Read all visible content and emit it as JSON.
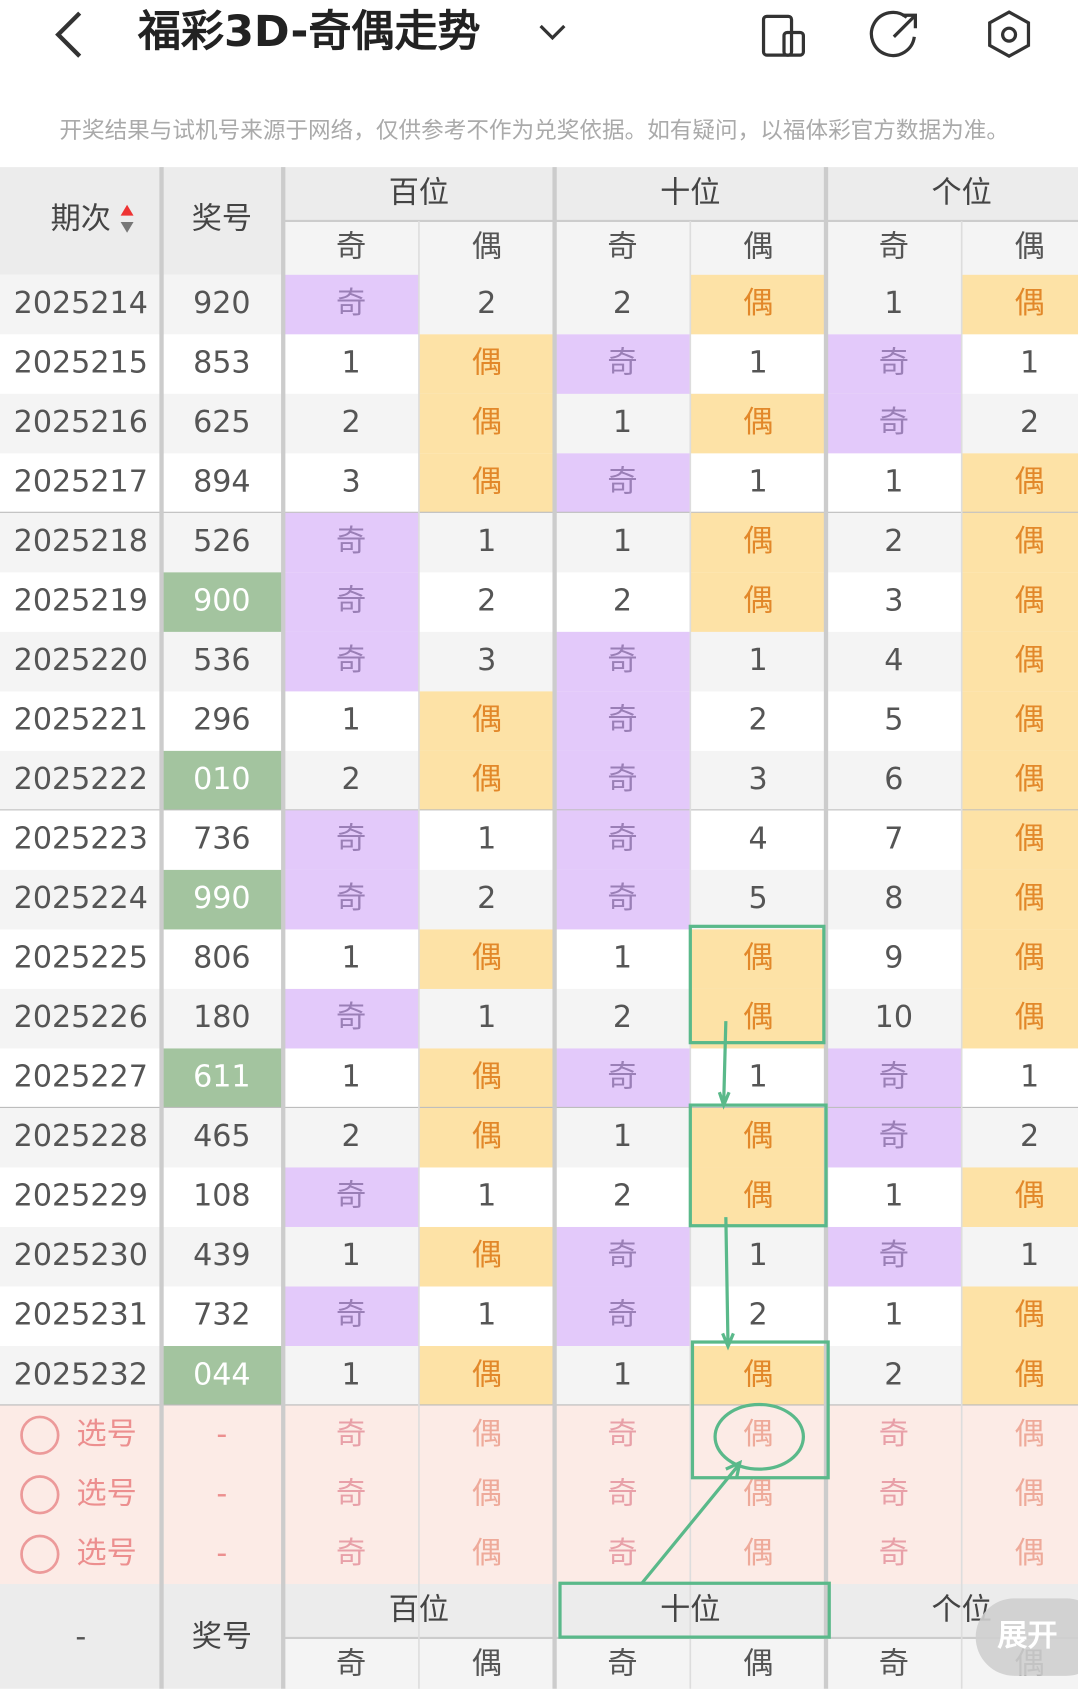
{
  "header": {
    "title": "福彩3D-奇偶走势"
  },
  "notice": "开奖结果与试机号来源于网络，仅供参考不作为兑奖依据。如有疑问，以福体彩官方数据为准。",
  "table": {
    "period_header": "期次",
    "number_header": "奖号",
    "groups": [
      "百位",
      "十位",
      "个位"
    ],
    "sub_headers": [
      "奇",
      "偶"
    ],
    "rows": [
      {
        "period": "2025214",
        "number": "920",
        "cells": [
          "奇",
          2,
          2,
          "偶",
          1,
          "偶"
        ]
      },
      {
        "period": "2025215",
        "number": "853",
        "cells": [
          1,
          "偶",
          "奇",
          1,
          "奇",
          1
        ]
      },
      {
        "period": "2025216",
        "number": "625",
        "cells": [
          2,
          "偶",
          1,
          "偶",
          "奇",
          2
        ]
      },
      {
        "period": "2025217",
        "number": "894",
        "cells": [
          3,
          "偶",
          "奇",
          1,
          1,
          "偶"
        ]
      },
      {
        "period": "2025218",
        "number": "526",
        "cells": [
          "奇",
          1,
          1,
          "偶",
          2,
          "偶"
        ]
      },
      {
        "period": "2025219",
        "number": "900",
        "cells": [
          "奇",
          2,
          2,
          "偶",
          3,
          "偶"
        ]
      },
      {
        "period": "2025220",
        "number": "536",
        "cells": [
          "奇",
          3,
          "奇",
          1,
          4,
          "偶"
        ]
      },
      {
        "period": "2025221",
        "number": "296",
        "cells": [
          1,
          "偶",
          "奇",
          2,
          5,
          "偶"
        ]
      },
      {
        "period": "2025222",
        "number": "010",
        "cells": [
          2,
          "偶",
          "奇",
          3,
          6,
          "偶"
        ]
      },
      {
        "period": "2025223",
        "number": "736",
        "cells": [
          "奇",
          1,
          "奇",
          4,
          7,
          "偶"
        ]
      },
      {
        "period": "2025224",
        "number": "990",
        "cells": [
          "奇",
          2,
          "奇",
          5,
          8,
          "偶"
        ]
      },
      {
        "period": "2025225",
        "number": "806",
        "cells": [
          1,
          "偶",
          1,
          "偶",
          9,
          "偶"
        ]
      },
      {
        "period": "2025226",
        "number": "180",
        "cells": [
          "奇",
          1,
          2,
          "偶",
          10,
          "偶"
        ]
      },
      {
        "period": "2025227",
        "number": "611",
        "cells": [
          1,
          "偶",
          "奇",
          1,
          "奇",
          1
        ]
      },
      {
        "period": "2025228",
        "number": "465",
        "cells": [
          2,
          "偶",
          1,
          "偶",
          "奇",
          2
        ]
      },
      {
        "period": "2025229",
        "number": "108",
        "cells": [
          "奇",
          1,
          2,
          "偶",
          1,
          "偶"
        ]
      },
      {
        "period": "2025230",
        "number": "439",
        "cells": [
          1,
          "偶",
          "奇",
          1,
          "奇",
          1
        ]
      },
      {
        "period": "2025231",
        "number": "732",
        "cells": [
          "奇",
          1,
          "奇",
          2,
          1,
          "偶"
        ]
      },
      {
        "period": "2025232",
        "number": "044",
        "cells": [
          1,
          "偶",
          1,
          "偶",
          2,
          "偶"
        ]
      }
    ],
    "select_rows": [
      {
        "label": "选号",
        "number": "-",
        "cells": [
          "奇",
          "偶",
          "奇",
          "偶",
          "奇",
          "偶"
        ]
      },
      {
        "label": "选号",
        "number": "-",
        "cells": [
          "奇",
          "偶",
          "奇",
          "偶",
          "奇",
          "偶"
        ]
      },
      {
        "label": "选号",
        "number": "-",
        "cells": [
          "奇",
          "偶",
          "奇",
          "偶",
          "奇",
          "偶"
        ]
      }
    ],
    "footer": {
      "period": "-",
      "number_header": "奖号",
      "groups": [
        "百位",
        "十位",
        "个位"
      ],
      "sub_headers": [
        "奇",
        "偶"
      ]
    }
  },
  "expand_button": "展开"
}
